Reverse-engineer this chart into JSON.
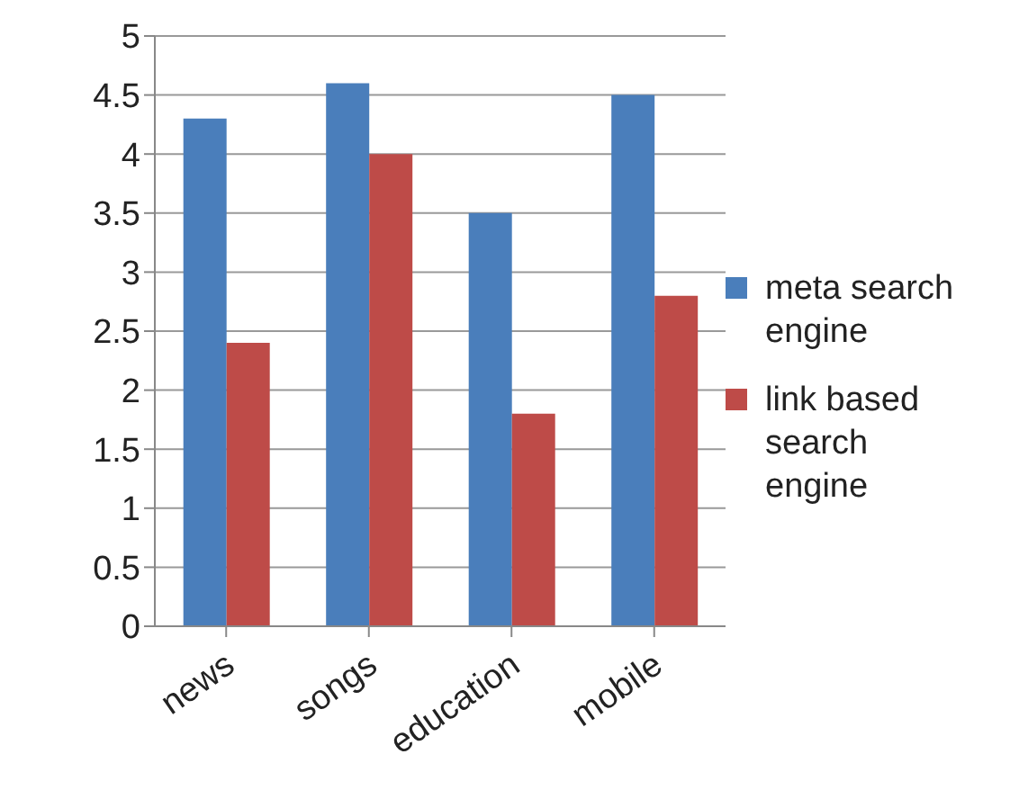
{
  "chart_data": {
    "type": "bar",
    "categories": [
      "news",
      "songs",
      "education",
      "mobile"
    ],
    "series": [
      {
        "name": "meta search engine",
        "color": "#4a7ebb",
        "values": [
          4.3,
          4.6,
          3.5,
          4.5
        ]
      },
      {
        "name": "link based search engine",
        "color": "#be4b48",
        "values": [
          2.4,
          4.0,
          1.8,
          2.8
        ]
      }
    ],
    "ylim": [
      0,
      5
    ],
    "yticks": [
      0,
      0.5,
      1,
      1.5,
      2,
      2.5,
      3,
      3.5,
      4,
      4.5,
      5
    ],
    "grid": "y",
    "legend": "right"
  }
}
